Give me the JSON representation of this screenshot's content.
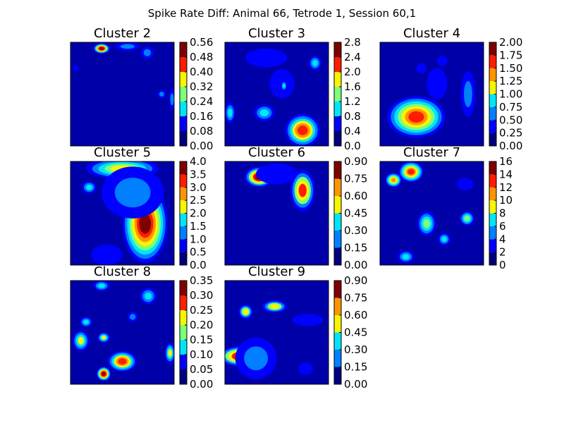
{
  "figure": {
    "title": "Spike Rate Diff: Animal 66, Tetrode 1, Session 60,1",
    "colormap": [
      "#00007f",
      "#0000ff",
      "#0080ff",
      "#00e5f8",
      "#7cff79",
      "#f8f500",
      "#ff9400",
      "#ff1d00",
      "#7f0000"
    ],
    "background": "#0000a8"
  },
  "chart_data": [
    {
      "type": "heatmap",
      "title": "Cluster 2",
      "colorbar_ticks": [
        "0.00",
        "0.08",
        "0.16",
        "0.24",
        "0.32",
        "0.40",
        "0.48",
        "0.56"
      ],
      "levels": 7,
      "blobs": [
        {
          "cx": 0.3,
          "cy": 0.06,
          "rx": 0.08,
          "ry": 0.05,
          "level": 7
        },
        {
          "cx": 0.55,
          "cy": 0.04,
          "rx": 0.12,
          "ry": 0.04,
          "level": 2
        },
        {
          "cx": 0.74,
          "cy": 0.1,
          "rx": 0.06,
          "ry": 0.06,
          "level": 2
        },
        {
          "cx": 0.88,
          "cy": 0.5,
          "rx": 0.04,
          "ry": 0.04,
          "level": 2
        },
        {
          "cx": 0.05,
          "cy": 0.25,
          "rx": 0.03,
          "ry": 0.03,
          "level": 1
        },
        {
          "cx": 0.98,
          "cy": 0.55,
          "rx": 0.03,
          "ry": 0.1,
          "level": 2
        }
      ]
    },
    {
      "type": "heatmap",
      "title": "Cluster 3",
      "colorbar_ticks": [
        "0.0",
        "0.4",
        "0.8",
        "1.2",
        "1.6",
        "2.0",
        "2.4",
        "2.8"
      ],
      "levels": 7,
      "blobs": [
        {
          "cx": 0.75,
          "cy": 0.85,
          "rx": 0.17,
          "ry": 0.16,
          "level": 6
        },
        {
          "cx": 0.38,
          "cy": 0.68,
          "rx": 0.1,
          "ry": 0.08,
          "level": 3
        },
        {
          "cx": 0.05,
          "cy": 0.68,
          "rx": 0.05,
          "ry": 0.1,
          "level": 3
        },
        {
          "cx": 0.87,
          "cy": 0.2,
          "rx": 0.06,
          "ry": 0.07,
          "level": 3
        },
        {
          "cx": 0.4,
          "cy": 0.15,
          "rx": 0.2,
          "ry": 0.09,
          "level": 1
        },
        {
          "cx": 0.55,
          "cy": 0.4,
          "rx": 0.12,
          "ry": 0.14,
          "level": 1
        },
        {
          "cx": 0.57,
          "cy": 0.42,
          "rx": 0.03,
          "ry": 0.05,
          "level": 3
        }
      ]
    },
    {
      "type": "heatmap",
      "title": "Cluster 4",
      "colorbar_ticks": [
        "0.00",
        "0.25",
        "0.50",
        "0.75",
        "1.00",
        "1.25",
        "1.50",
        "1.75",
        "2.00"
      ],
      "levels": 8,
      "blobs": [
        {
          "cx": 0.35,
          "cy": 0.72,
          "rx": 0.28,
          "ry": 0.2,
          "level": 7
        },
        {
          "cx": 0.55,
          "cy": 0.4,
          "rx": 0.1,
          "ry": 0.15,
          "level": 1
        },
        {
          "cx": 0.4,
          "cy": 0.25,
          "rx": 0.05,
          "ry": 0.05,
          "level": 1
        },
        {
          "cx": 0.85,
          "cy": 0.5,
          "rx": 0.07,
          "ry": 0.22,
          "level": 2
        },
        {
          "cx": 0.6,
          "cy": 0.18,
          "rx": 0.05,
          "ry": 0.05,
          "level": 1
        }
      ]
    },
    {
      "type": "heatmap",
      "title": "Cluster 5",
      "colorbar_ticks": [
        "0.0",
        "0.5",
        "1.0",
        "1.5",
        "2.0",
        "2.5",
        "3.0",
        "3.5",
        "4.0"
      ],
      "levels": 8,
      "blobs": [
        {
          "cx": 0.72,
          "cy": 0.6,
          "rx": 0.22,
          "ry": 0.38,
          "level": 8
        },
        {
          "cx": 0.5,
          "cy": 0.07,
          "rx": 0.35,
          "ry": 0.1,
          "level": 5
        },
        {
          "cx": 0.6,
          "cy": 0.3,
          "rx": 0.3,
          "ry": 0.25,
          "level": 2
        },
        {
          "cx": 0.18,
          "cy": 0.25,
          "rx": 0.07,
          "ry": 0.06,
          "level": 3
        },
        {
          "cx": 0.35,
          "cy": 0.9,
          "rx": 0.15,
          "ry": 0.1,
          "level": 1
        }
      ]
    },
    {
      "type": "heatmap",
      "title": "Cluster 6",
      "colorbar_ticks": [
        "0.00",
        "0.15",
        "0.30",
        "0.45",
        "0.60",
        "0.75",
        "0.90"
      ],
      "levels": 6,
      "blobs": [
        {
          "cx": 0.33,
          "cy": 0.15,
          "rx": 0.14,
          "ry": 0.1,
          "level": 6
        },
        {
          "cx": 0.75,
          "cy": 0.28,
          "rx": 0.12,
          "ry": 0.2,
          "level": 5
        },
        {
          "cx": 0.5,
          "cy": 0.12,
          "rx": 0.2,
          "ry": 0.1,
          "level": 1
        }
      ]
    },
    {
      "type": "heatmap",
      "title": "Cluster 7",
      "colorbar_ticks": [
        "0",
        "2",
        "4",
        "6",
        "8",
        "10",
        "12",
        "14",
        "16"
      ],
      "levels": 8,
      "blobs": [
        {
          "cx": 0.3,
          "cy": 0.1,
          "rx": 0.12,
          "ry": 0.1,
          "level": 7
        },
        {
          "cx": 0.13,
          "cy": 0.18,
          "rx": 0.08,
          "ry": 0.07,
          "level": 6
        },
        {
          "cx": 0.45,
          "cy": 0.6,
          "rx": 0.09,
          "ry": 0.12,
          "level": 4
        },
        {
          "cx": 0.84,
          "cy": 0.55,
          "rx": 0.07,
          "ry": 0.07,
          "level": 4
        },
        {
          "cx": 0.25,
          "cy": 0.92,
          "rx": 0.08,
          "ry": 0.06,
          "level": 3
        },
        {
          "cx": 0.62,
          "cy": 0.75,
          "rx": 0.06,
          "ry": 0.06,
          "level": 3
        },
        {
          "cx": 0.82,
          "cy": 0.22,
          "rx": 0.08,
          "ry": 0.06,
          "level": 1
        }
      ]
    },
    {
      "type": "heatmap",
      "title": "Cluster 8",
      "colorbar_ticks": [
        "0.00",
        "0.05",
        "0.10",
        "0.15",
        "0.20",
        "0.25",
        "0.30",
        "0.35"
      ],
      "levels": 7,
      "blobs": [
        {
          "cx": 0.5,
          "cy": 0.78,
          "rx": 0.14,
          "ry": 0.1,
          "level": 6
        },
        {
          "cx": 0.32,
          "cy": 0.9,
          "rx": 0.07,
          "ry": 0.07,
          "level": 7
        },
        {
          "cx": 0.1,
          "cy": 0.58,
          "rx": 0.08,
          "ry": 0.1,
          "level": 4
        },
        {
          "cx": 0.32,
          "cy": 0.55,
          "rx": 0.06,
          "ry": 0.05,
          "level": 4
        },
        {
          "cx": 0.75,
          "cy": 0.15,
          "rx": 0.08,
          "ry": 0.08,
          "level": 3
        },
        {
          "cx": 0.96,
          "cy": 0.7,
          "rx": 0.05,
          "ry": 0.1,
          "level": 4
        },
        {
          "cx": 0.3,
          "cy": 0.05,
          "rx": 0.08,
          "ry": 0.05,
          "level": 3
        },
        {
          "cx": 0.15,
          "cy": 0.4,
          "rx": 0.06,
          "ry": 0.05,
          "level": 3
        },
        {
          "cx": 0.6,
          "cy": 0.35,
          "rx": 0.05,
          "ry": 0.05,
          "level": 2
        }
      ]
    },
    {
      "type": "heatmap",
      "title": "Cluster 9",
      "colorbar_ticks": [
        "0.00",
        "0.15",
        "0.30",
        "0.45",
        "0.60",
        "0.75",
        "0.90"
      ],
      "levels": 6,
      "blobs": [
        {
          "cx": 0.16,
          "cy": 0.73,
          "rx": 0.22,
          "ry": 0.1,
          "level": 6
        },
        {
          "cx": 0.3,
          "cy": 0.75,
          "rx": 0.2,
          "ry": 0.2,
          "level": 2
        },
        {
          "cx": 0.48,
          "cy": 0.25,
          "rx": 0.12,
          "ry": 0.06,
          "level": 4
        },
        {
          "cx": 0.2,
          "cy": 0.3,
          "rx": 0.07,
          "ry": 0.07,
          "level": 4
        },
        {
          "cx": 0.8,
          "cy": 0.38,
          "rx": 0.15,
          "ry": 0.06,
          "level": 1
        },
        {
          "cx": 0.78,
          "cy": 0.85,
          "rx": 0.07,
          "ry": 0.06,
          "level": 1
        }
      ]
    }
  ]
}
